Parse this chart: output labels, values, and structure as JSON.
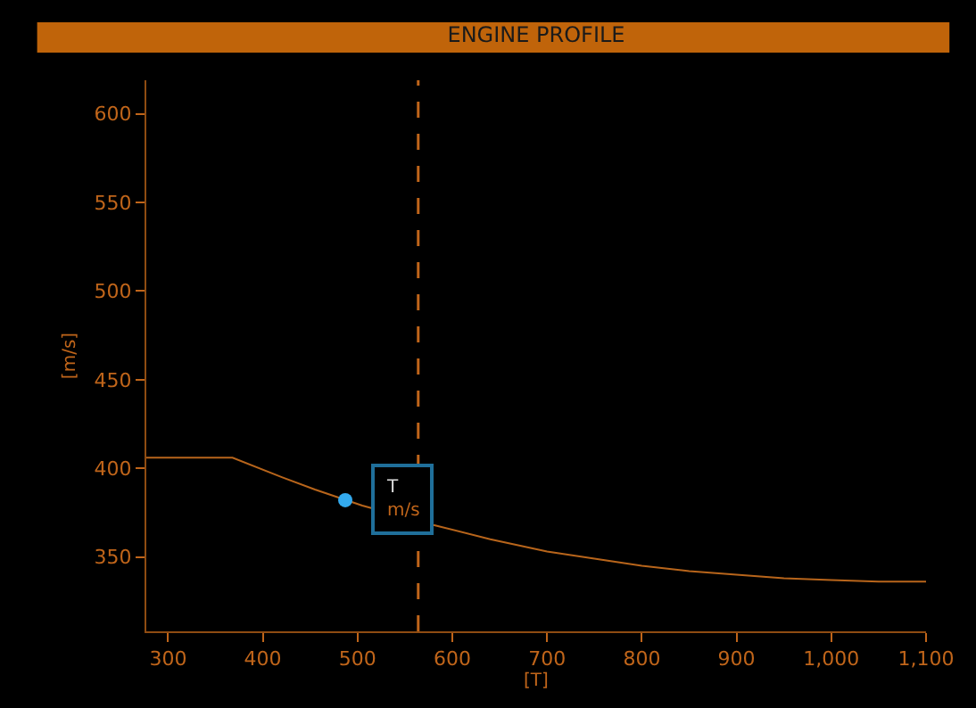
{
  "chart_data": {
    "type": "line",
    "title": "ENGINE PROFILE",
    "xlabel": "[T]",
    "ylabel": "[m/s]",
    "xlim": [
      277,
      1100
    ],
    "ylim": [
      308,
      619
    ],
    "xticks": [
      300,
      400,
      500,
      600,
      700,
      800,
      900,
      {
        "value": 1000,
        "label": "1,000"
      },
      {
        "value": 1100,
        "label": "1,100"
      }
    ],
    "yticks": [
      350,
      400,
      450,
      500,
      550,
      600
    ],
    "grid": false,
    "marker": "none",
    "line_style": "solid",
    "series": [
      {
        "color": "#b8651b",
        "x": [
          277,
          368,
          420,
          455,
          505,
          580,
          640,
          700,
          750,
          800,
          850,
          900,
          950,
          1000,
          1050,
          1100
        ],
        "values": [
          406,
          406,
          395,
          388,
          379,
          368,
          360,
          353,
          349,
          345,
          342,
          340,
          338,
          337,
          336,
          336
        ]
      },
      {
        "type": "scatter",
        "color": "#33aaee",
        "marker": "circle",
        "x": [
          487
        ],
        "values": [
          382
        ]
      }
    ],
    "ref_lines": [
      {
        "axis": "x",
        "value": 564,
        "color": "#c0651a",
        "line_style": "dashed"
      }
    ],
    "annotations": [
      {
        "text": "T\nm/s",
        "x": 487,
        "y": 382
      }
    ]
  }
}
